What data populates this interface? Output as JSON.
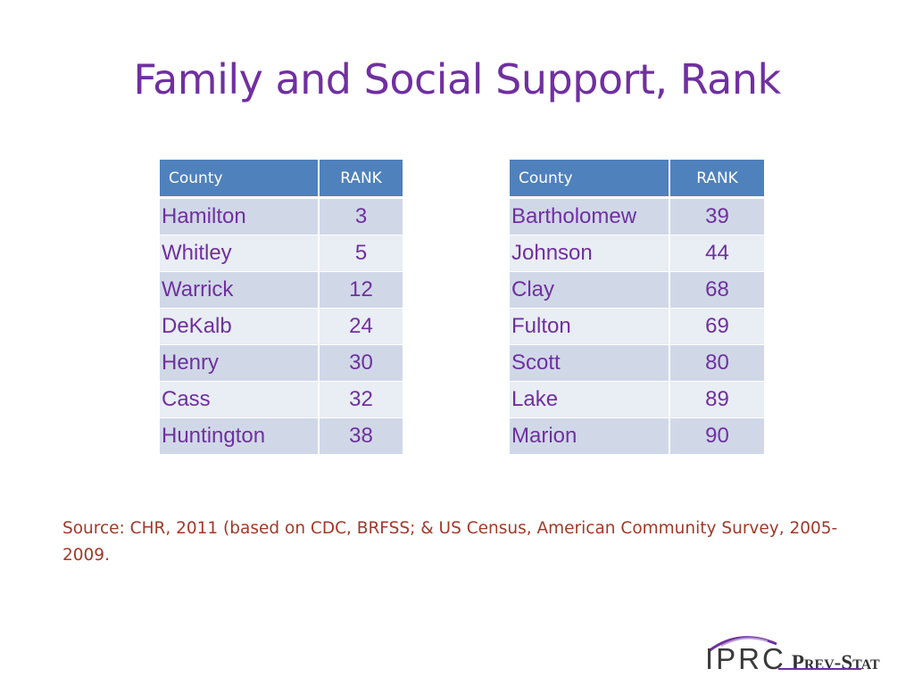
{
  "slide": {
    "title": "Family and Social Support, Rank"
  },
  "tables": {
    "left": {
      "header": {
        "county": "County",
        "rank": "RANK"
      },
      "rows": [
        {
          "county": "Hamilton",
          "rank": "3"
        },
        {
          "county": "Whitley",
          "rank": "5"
        },
        {
          "county": "Warrick",
          "rank": "12"
        },
        {
          "county": "DeKalb",
          "rank": "24"
        },
        {
          "county": "Henry",
          "rank": "30"
        },
        {
          "county": "Cass",
          "rank": "32"
        },
        {
          "county": "Huntington",
          "rank": "38"
        }
      ]
    },
    "right": {
      "header": {
        "county": "County",
        "rank": "RANK"
      },
      "rows": [
        {
          "county": "Bartholomew",
          "rank": "39"
        },
        {
          "county": "Johnson",
          "rank": "44"
        },
        {
          "county": "Clay",
          "rank": "68"
        },
        {
          "county": "Fulton",
          "rank": "69"
        },
        {
          "county": "Scott",
          "rank": "80"
        },
        {
          "county": "Lake",
          "rank": "89"
        },
        {
          "county": "Marion",
          "rank": "90"
        }
      ]
    }
  },
  "source_note": "Source:  CHR, 2011 (based on CDC, BRFSS; & US Census, American Community Survey, 2005-2009.",
  "logo": {
    "org": "IPRC",
    "product": "Prev-Stat"
  },
  "colors": {
    "title": "#7030a0",
    "header_bg": "#4f81bd",
    "row_odd": "#d0d8e8",
    "row_even": "#e9edf4",
    "cell_text": "#7030a0",
    "source_text": "#a03a2a"
  }
}
